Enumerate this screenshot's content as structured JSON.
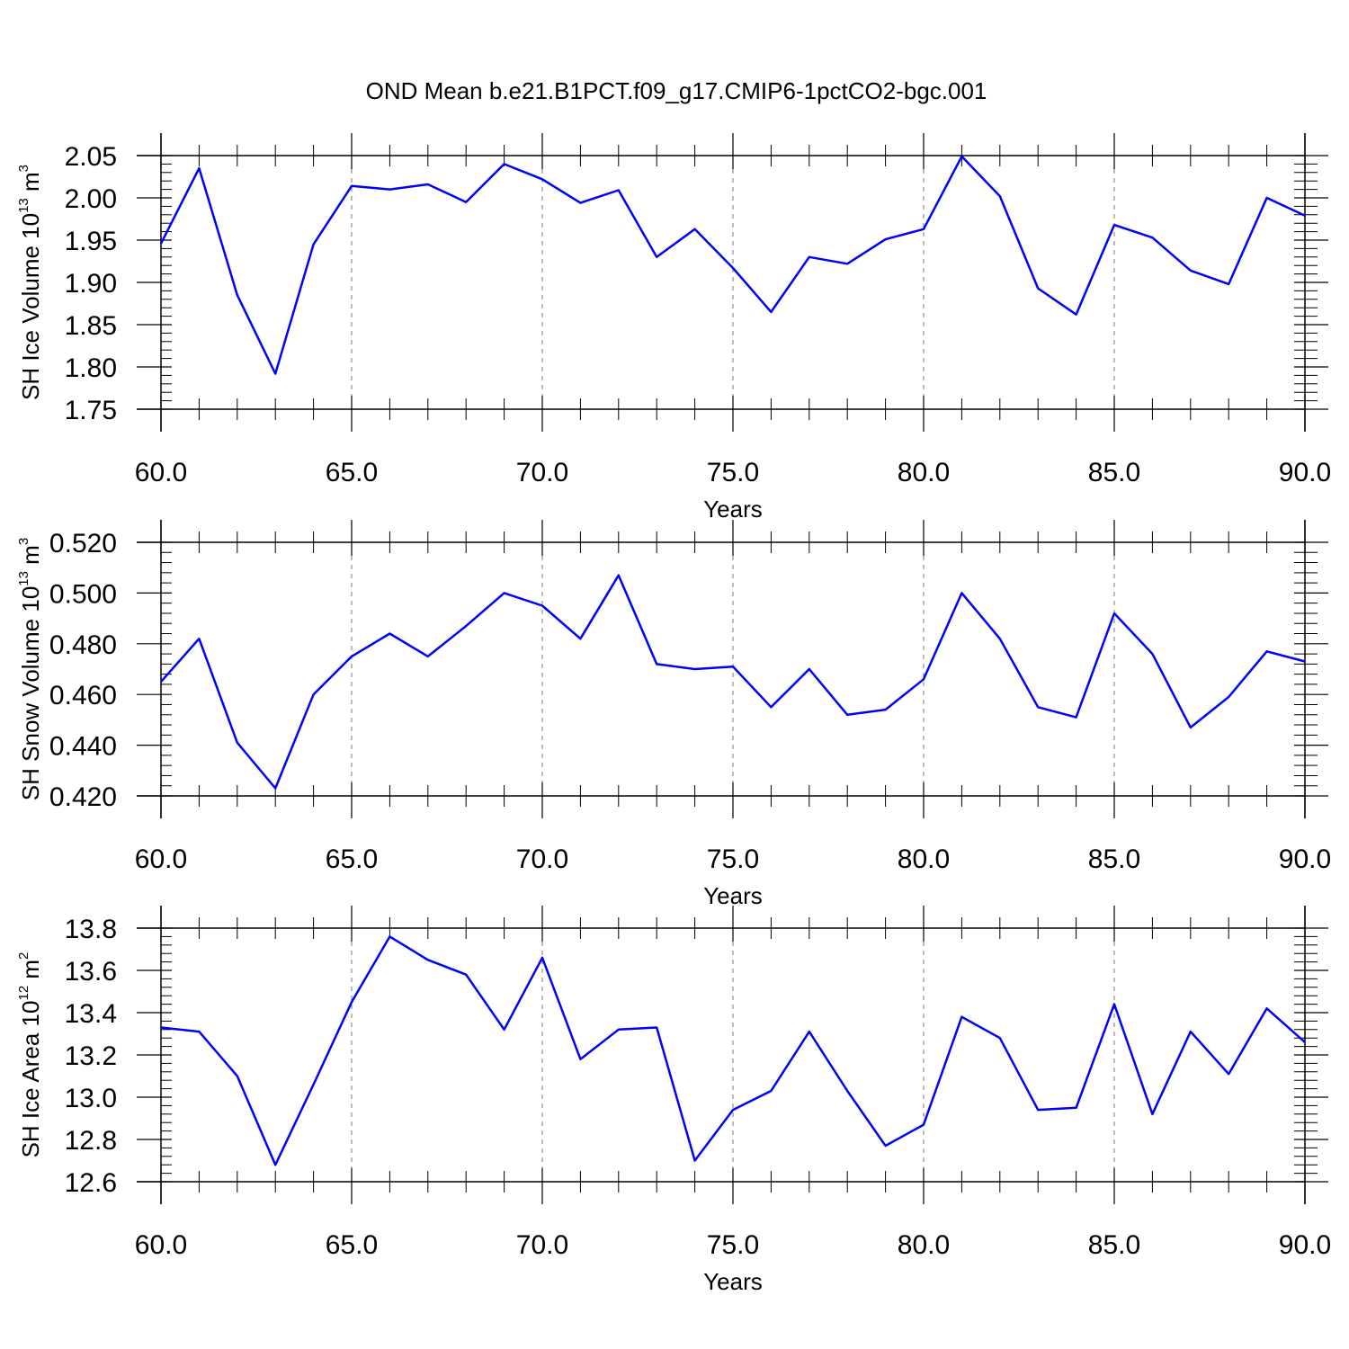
{
  "title": "OND Mean b.e21.B1PCT.f09_g17.CMIP6-1pctCO2-bgc.001",
  "line_color": "#0000ff",
  "chart_data": [
    {
      "type": "line",
      "ylabel": {
        "text": "SH Ice Volume 10",
        "sup": "13",
        "unit": " m",
        "unit_sup": "3"
      },
      "xlabel": "Years",
      "xlim": [
        60,
        90
      ],
      "ylim": [
        1.75,
        2.05
      ],
      "yticks": [
        1.75,
        1.8,
        1.85,
        1.9,
        1.95,
        2.0,
        2.05
      ],
      "ytick_labels": [
        "1.75",
        "1.80",
        "1.85",
        "1.90",
        "1.95",
        "2.00",
        "2.05"
      ],
      "xticks": [
        60,
        65,
        70,
        75,
        80,
        85,
        90
      ],
      "xtick_labels": [
        "60.0",
        "65.0",
        "70.0",
        "75.0",
        "80.0",
        "85.0",
        "90.0"
      ],
      "grid": "vertical dashed at major x ticks",
      "x": [
        60,
        61,
        62,
        63,
        64,
        65,
        66,
        67,
        68,
        69,
        70,
        71,
        72,
        73,
        74,
        75,
        76,
        77,
        78,
        79,
        80,
        81,
        82,
        83,
        84,
        85,
        86,
        87,
        88,
        89,
        90
      ],
      "values": [
        1.946,
        2.035,
        1.885,
        1.792,
        1.945,
        2.014,
        2.01,
        2.016,
        1.995,
        2.04,
        2.022,
        1.994,
        2.009,
        1.93,
        1.963,
        1.917,
        1.865,
        1.93,
        1.922,
        1.951,
        1.963,
        2.049,
        2.002,
        1.893,
        1.862,
        1.968,
        1.953,
        1.914,
        1.898,
        2.0,
        1.979
      ]
    },
    {
      "type": "line",
      "ylabel": {
        "text": "SH Snow Volume 10",
        "sup": "13",
        "unit": " m",
        "unit_sup": "3"
      },
      "xlabel": "Years",
      "xlim": [
        60,
        90
      ],
      "ylim": [
        0.42,
        0.52
      ],
      "yticks": [
        0.42,
        0.44,
        0.46,
        0.48,
        0.5,
        0.52
      ],
      "ytick_labels": [
        "0.420",
        "0.440",
        "0.460",
        "0.480",
        "0.500",
        "0.520"
      ],
      "xticks": [
        60,
        65,
        70,
        75,
        80,
        85,
        90
      ],
      "xtick_labels": [
        "60.0",
        "65.0",
        "70.0",
        "75.0",
        "80.0",
        "85.0",
        "90.0"
      ],
      "grid": "vertical dashed at major x ticks",
      "x": [
        60,
        61,
        62,
        63,
        64,
        65,
        66,
        67,
        68,
        69,
        70,
        71,
        72,
        73,
        74,
        75,
        76,
        77,
        78,
        79,
        80,
        81,
        82,
        83,
        84,
        85,
        86,
        87,
        88,
        89,
        90
      ],
      "values": [
        0.465,
        0.482,
        0.441,
        0.423,
        0.46,
        0.475,
        0.484,
        0.475,
        0.487,
        0.5,
        0.495,
        0.482,
        0.507,
        0.472,
        0.47,
        0.471,
        0.455,
        0.47,
        0.452,
        0.454,
        0.466,
        0.5,
        0.482,
        0.455,
        0.451,
        0.492,
        0.476,
        0.447,
        0.459,
        0.477,
        0.473
      ]
    },
    {
      "type": "line",
      "ylabel": {
        "text": "SH Ice Area 10",
        "sup": "12",
        "unit": " m",
        "unit_sup": "2"
      },
      "xlabel": "Years",
      "xlim": [
        60,
        90
      ],
      "ylim": [
        12.6,
        13.8
      ],
      "yticks": [
        12.6,
        12.8,
        13.0,
        13.2,
        13.4,
        13.6,
        13.8
      ],
      "ytick_labels": [
        "12.6",
        "12.8",
        "13.0",
        "13.2",
        "13.4",
        "13.6",
        "13.8"
      ],
      "xticks": [
        60,
        65,
        70,
        75,
        80,
        85,
        90
      ],
      "xtick_labels": [
        "60.0",
        "65.0",
        "70.0",
        "75.0",
        "80.0",
        "85.0",
        "90.0"
      ],
      "grid": "vertical dashed at major x ticks",
      "x": [
        60,
        61,
        62,
        63,
        64,
        65,
        66,
        67,
        68,
        69,
        70,
        71,
        72,
        73,
        74,
        75,
        76,
        77,
        78,
        79,
        80,
        81,
        82,
        83,
        84,
        85,
        86,
        87,
        88,
        89,
        90
      ],
      "values": [
        13.33,
        13.31,
        13.1,
        12.68,
        13.06,
        13.45,
        13.76,
        13.65,
        13.58,
        13.32,
        13.66,
        13.18,
        13.32,
        13.33,
        12.7,
        12.94,
        13.03,
        13.31,
        13.03,
        12.77,
        12.87,
        13.38,
        13.28,
        12.94,
        12.95,
        13.44,
        12.92,
        13.31,
        13.11,
        13.42,
        13.26
      ]
    }
  ]
}
